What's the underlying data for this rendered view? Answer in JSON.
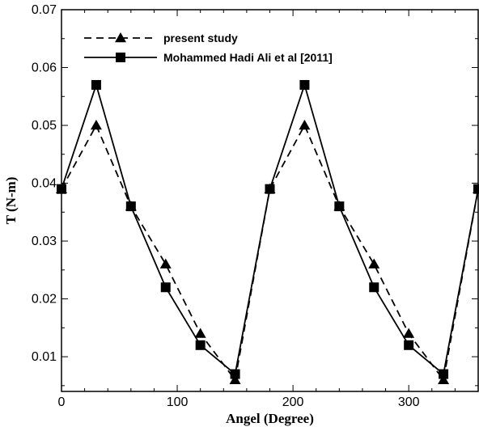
{
  "chart_data": {
    "type": "line",
    "xlabel": "Angel (Degree)",
    "ylabel": "T (N-m)",
    "xlim": [
      0,
      360
    ],
    "ylim": [
      0.004,
      0.07
    ],
    "x_ticks": [
      "0",
      "100",
      "200",
      "300"
    ],
    "x_tick_values": [
      0,
      100,
      200,
      300
    ],
    "y_ticks": [
      "0.01",
      "0.02",
      "0.03",
      "0.04",
      "0.05",
      "0.06",
      "0.07"
    ],
    "y_tick_values": [
      0.01,
      0.02,
      0.03,
      0.04,
      0.05,
      0.06,
      0.07
    ],
    "grid": false,
    "legend_position": "top-left",
    "series": [
      {
        "name": "present study",
        "line_style": "dashed",
        "marker": "triangle",
        "color": "#000000",
        "x": [
          0,
          30,
          60,
          90,
          120,
          150,
          180,
          210,
          240,
          270,
          300,
          330,
          360
        ],
        "y": [
          0.039,
          0.05,
          0.036,
          0.026,
          0.014,
          0.006,
          0.039,
          0.05,
          0.036,
          0.026,
          0.014,
          0.006,
          0.039
        ]
      },
      {
        "name": "Mohammed Hadi Ali et al [2011]",
        "line_style": "solid",
        "marker": "square",
        "color": "#000000",
        "x": [
          0,
          30,
          60,
          90,
          120,
          150,
          180,
          210,
          240,
          270,
          300,
          330,
          360
        ],
        "y": [
          0.039,
          0.057,
          0.036,
          0.022,
          0.012,
          0.007,
          0.039,
          0.057,
          0.036,
          0.022,
          0.012,
          0.007,
          0.039
        ]
      }
    ]
  }
}
